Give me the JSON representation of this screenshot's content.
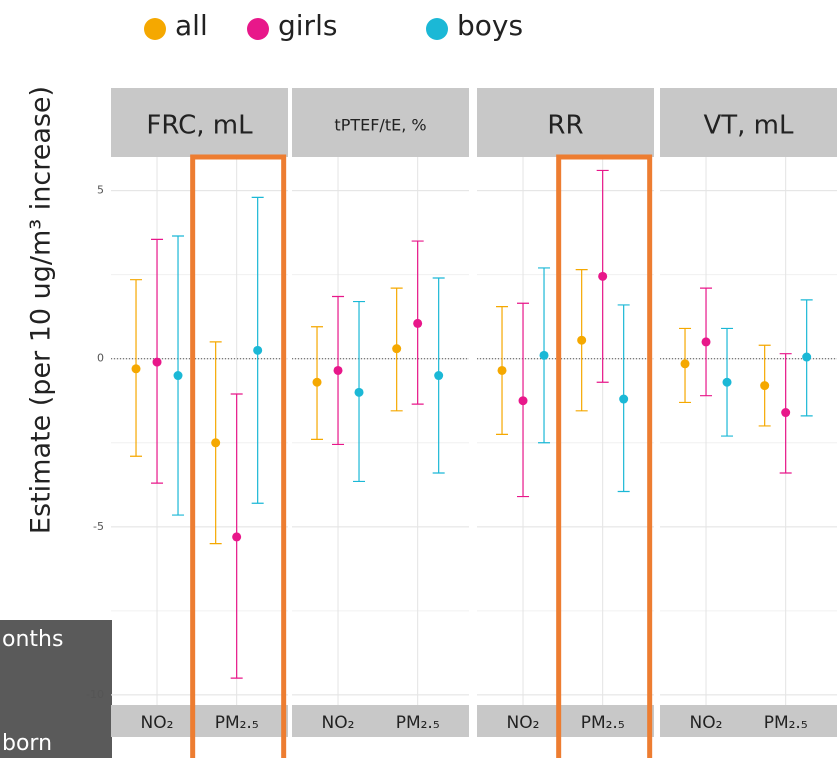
{
  "chart_data": {
    "type": "errorbar",
    "ylabel": "Estimate (per 10 ug/m³ increase)",
    "ylim": [
      -10.3,
      6
    ],
    "yticks": [
      -10,
      -5,
      0,
      5
    ],
    "grid": true,
    "series": [
      {
        "name": "all",
        "color": "#f5a800"
      },
      {
        "name": "girls",
        "color": "#e8178a"
      },
      {
        "name": "boys",
        "color": "#1bb8d6"
      }
    ],
    "panels": [
      {
        "title": "FRC, mL",
        "categories": [
          "NO₂",
          "PM₂.₅"
        ],
        "highlight": [
          false,
          true
        ],
        "series": [
          {
            "values": [
              -0.3,
              -2.5
            ],
            "lower": [
              -2.9,
              -5.5
            ],
            "upper": [
              2.35,
              0.5
            ]
          },
          {
            "values": [
              -0.1,
              -5.3
            ],
            "lower": [
              -3.7,
              -9.5
            ],
            "upper": [
              3.55,
              -1.05
            ]
          },
          {
            "values": [
              -0.5,
              0.25
            ],
            "lower": [
              -4.65,
              -4.3
            ],
            "upper": [
              3.65,
              4.8
            ]
          }
        ]
      },
      {
        "title": "tPTEF/tE, %",
        "categories": [
          "NO₂",
          "PM₂.₅"
        ],
        "highlight": [
          false,
          false
        ],
        "series": [
          {
            "values": [
              -0.7,
              0.3
            ],
            "lower": [
              -2.4,
              -1.55
            ],
            "upper": [
              0.95,
              2.1
            ]
          },
          {
            "values": [
              -0.35,
              1.05
            ],
            "lower": [
              -2.55,
              -1.35
            ],
            "upper": [
              1.85,
              3.5
            ]
          },
          {
            "values": [
              -1.0,
              -0.5
            ],
            "lower": [
              -3.65,
              -3.4
            ],
            "upper": [
              1.7,
              2.4
            ]
          }
        ]
      },
      {
        "title": "RR",
        "categories": [
          "NO₂",
          "PM₂.₅"
        ],
        "highlight": [
          false,
          true
        ],
        "series": [
          {
            "values": [
              -0.35,
              0.55
            ],
            "lower": [
              -2.25,
              -1.55
            ],
            "upper": [
              1.55,
              2.65
            ]
          },
          {
            "values": [
              -1.25,
              2.45
            ],
            "lower": [
              -4.1,
              -0.7
            ],
            "upper": [
              1.65,
              5.6
            ]
          },
          {
            "values": [
              0.1,
              -1.2
            ],
            "lower": [
              -2.5,
              -3.95
            ],
            "upper": [
              2.7,
              1.6
            ]
          }
        ]
      },
      {
        "title": "VT, mL",
        "categories": [
          "NO₂",
          "PM₂.₅"
        ],
        "highlight": [
          false,
          false
        ],
        "series": [
          {
            "values": [
              -0.15,
              -0.8
            ],
            "lower": [
              -1.3,
              -2.0
            ],
            "upper": [
              0.9,
              0.4
            ]
          },
          {
            "values": [
              0.5,
              -1.6
            ],
            "lower": [
              -1.1,
              -3.4
            ],
            "upper": [
              2.1,
              0.15
            ]
          },
          {
            "values": [
              -0.7,
              0.05
            ],
            "lower": [
              -2.3,
              -1.7
            ],
            "upper": [
              0.9,
              1.75
            ]
          }
        ]
      }
    ]
  },
  "background_text": [
    "onths",
    "born"
  ]
}
